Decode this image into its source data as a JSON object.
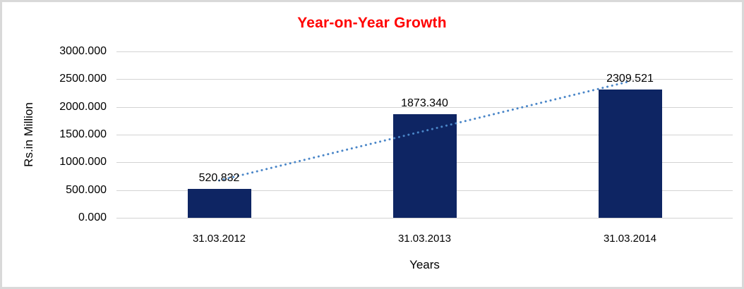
{
  "chart_data": {
    "type": "bar",
    "title": "Year-on-Year Growth",
    "title_color": "#ff0000",
    "xlabel": "Years",
    "ylabel": "Rs.in Million",
    "categories": [
      "31.03.2012",
      "31.03.2013",
      "31.03.2014"
    ],
    "values": [
      520.832,
      1873.34,
      2309.521
    ],
    "data_labels": [
      "520.832",
      "1873.340",
      "2309.521"
    ],
    "ylim": [
      0,
      3000
    ],
    "ytick_step": 500,
    "ytick_labels": [
      "0.000",
      "500.000",
      "1000.000",
      "1500.000",
      "2000.000",
      "2500.000",
      "3000.000"
    ],
    "grid": true,
    "legend": "none",
    "bar_color": "#0e2563",
    "gridline_color": "#d3d3d3",
    "trendline": {
      "type": "linear",
      "style": "dotted",
      "color": "#4a86c8"
    }
  }
}
